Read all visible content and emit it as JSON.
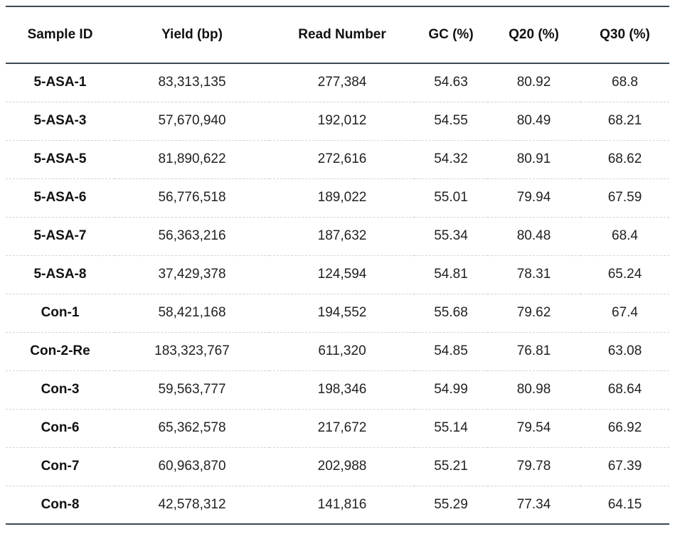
{
  "table": {
    "headers": [
      "Sample ID",
      "Yield (bp)",
      "Read Number",
      "GC (%)",
      "Q20 (%)",
      "Q30 (%)"
    ],
    "rows": [
      [
        "5-ASA-1",
        "83,313,135",
        "277,384",
        "54.63",
        "80.92",
        "68.8"
      ],
      [
        "5-ASA-3",
        "57,670,940",
        "192,012",
        "54.55",
        "80.49",
        "68.21"
      ],
      [
        "5-ASA-5",
        "81,890,622",
        "272,616",
        "54.32",
        "80.91",
        "68.62"
      ],
      [
        "5-ASA-6",
        "56,776,518",
        "189,022",
        "55.01",
        "79.94",
        "67.59"
      ],
      [
        "5-ASA-7",
        "56,363,216",
        "187,632",
        "55.34",
        "80.48",
        "68.4"
      ],
      [
        "5-ASA-8",
        "37,429,378",
        "124,594",
        "54.81",
        "78.31",
        "65.24"
      ],
      [
        "Con-1",
        "58,421,168",
        "194,552",
        "55.68",
        "79.62",
        "67.4"
      ],
      [
        "Con-2-Re",
        "183,323,767",
        "611,320",
        "54.85",
        "76.81",
        "63.08"
      ],
      [
        "Con-3",
        "59,563,777",
        "198,346",
        "54.99",
        "80.98",
        "68.64"
      ],
      [
        "Con-6",
        "65,362,578",
        "217,672",
        "55.14",
        "79.54",
        "66.92"
      ],
      [
        "Con-7",
        "60,963,870",
        "202,988",
        "55.21",
        "79.78",
        "67.39"
      ],
      [
        "Con-8",
        "42,578,312",
        "141,816",
        "55.29",
        "77.34",
        "64.15"
      ]
    ]
  }
}
